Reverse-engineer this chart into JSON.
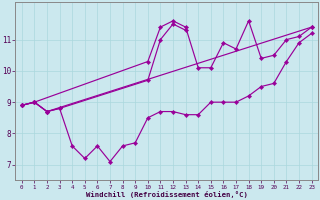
{
  "xlabel": "Windchill (Refroidissement éolien,°C)",
  "bg_color": "#cbe8ee",
  "line_color": "#990099",
  "grid_color": "#aad8dd",
  "xlim": [
    -0.5,
    23.5
  ],
  "ylim": [
    6.5,
    12.2
  ],
  "yticks": [
    7,
    8,
    9,
    10,
    11
  ],
  "ytick_labels": [
    "7",
    "8",
    "9",
    "10",
    "11"
  ],
  "xticks": [
    0,
    1,
    2,
    3,
    4,
    5,
    6,
    7,
    8,
    9,
    10,
    11,
    12,
    13,
    14,
    15,
    16,
    17,
    18,
    19,
    20,
    21,
    22,
    23
  ],
  "series": [
    {
      "x": [
        0,
        1,
        2,
        3,
        4,
        5,
        6,
        7,
        8,
        9,
        10,
        11,
        12,
        13,
        14,
        15,
        16,
        17,
        18,
        19,
        20,
        21,
        22,
        23
      ],
      "y": [
        8.9,
        9.0,
        8.7,
        8.8,
        7.6,
        7.2,
        7.6,
        7.1,
        7.6,
        7.7,
        8.5,
        8.7,
        8.7,
        8.6,
        8.6,
        9.0,
        9.0,
        9.0,
        9.2,
        9.5,
        9.6,
        10.3,
        10.9,
        11.2
      ]
    },
    {
      "x": [
        0,
        1,
        2,
        3,
        10,
        11,
        12,
        13
      ],
      "y": [
        8.9,
        9.0,
        8.7,
        8.8,
        9.7,
        11.0,
        11.5,
        11.3
      ]
    },
    {
      "x": [
        0,
        1,
        10,
        11,
        12,
        13,
        14,
        15,
        16,
        17,
        18,
        19,
        20,
        21,
        22,
        23
      ],
      "y": [
        8.9,
        9.0,
        10.3,
        11.4,
        11.6,
        11.4,
        10.1,
        10.1,
        10.9,
        10.7,
        11.6,
        10.4,
        10.5,
        11.0,
        11.1,
        11.4
      ]
    },
    {
      "x": [
        0,
        1,
        2,
        23
      ],
      "y": [
        8.9,
        9.0,
        8.7,
        11.4
      ]
    }
  ]
}
